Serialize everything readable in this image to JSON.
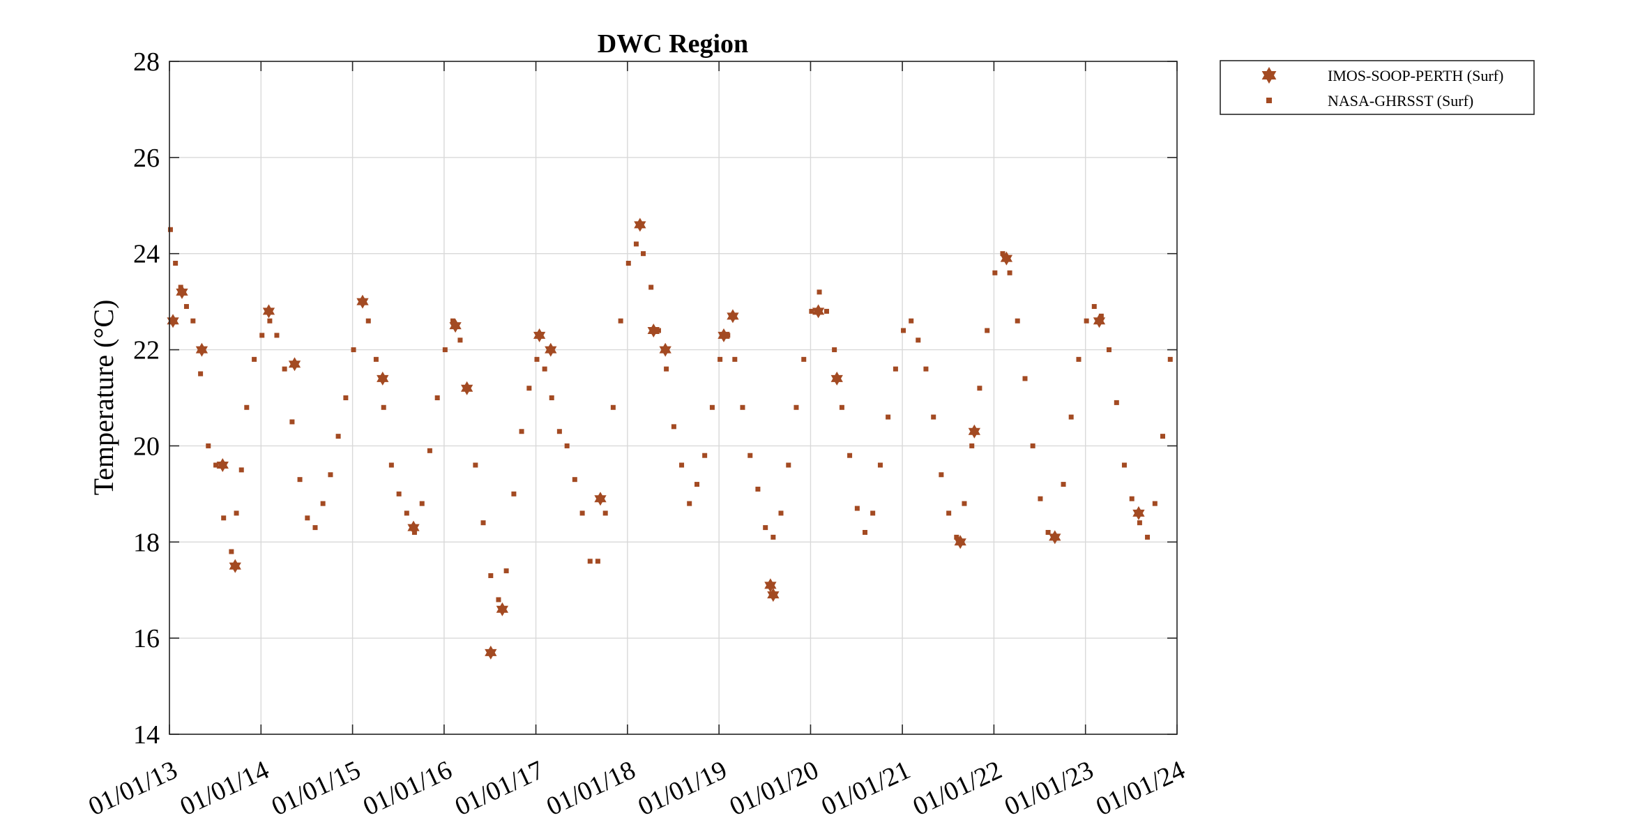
{
  "chart_data": {
    "type": "scatter",
    "title": "DWC Region",
    "xlabel": "",
    "ylabel": "Temperature (°C)",
    "x_type": "date",
    "xlim": [
      "2013-01-01",
      "2024-01-01"
    ],
    "ylim": [
      14,
      28
    ],
    "x_ticks": [
      "2013-01-01",
      "2014-01-01",
      "2015-01-01",
      "2016-01-01",
      "2017-01-01",
      "2018-01-01",
      "2019-01-01",
      "2020-01-01",
      "2021-01-01",
      "2022-01-01",
      "2023-01-01",
      "2024-01-01"
    ],
    "x_tick_labels": [
      "01/01/13",
      "01/01/14",
      "01/01/15",
      "01/01/16",
      "01/01/17",
      "01/01/18",
      "01/01/19",
      "01/01/20",
      "01/01/21",
      "01/01/22",
      "01/01/23",
      "01/01/24"
    ],
    "y_ticks": [
      14,
      16,
      18,
      20,
      22,
      24,
      26,
      28
    ],
    "y_tick_labels": [
      "14",
      "16",
      "18",
      "20",
      "22",
      "24",
      "26",
      "28"
    ],
    "grid": true,
    "legend_position": "outside-top-right",
    "color": "#a34a22",
    "series": [
      {
        "name": "IMOS-SOOP-PERTH (Surf)",
        "marker": "hexagram",
        "x": [
          "2013-01-15",
          "2013-02-20",
          "2013-05-10",
          "2013-08-01",
          "2013-09-20",
          "2014-02-01",
          "2014-05-15",
          "2015-02-10",
          "2015-05-01",
          "2015-09-01",
          "2016-02-15",
          "2016-04-01",
          "2016-07-05",
          "2016-08-20",
          "2017-01-15",
          "2017-03-01",
          "2017-09-15",
          "2018-02-20",
          "2018-04-15",
          "2018-06-01",
          "2019-01-20",
          "2019-02-25",
          "2019-07-25",
          "2019-08-05",
          "2020-02-01",
          "2020-04-15",
          "2021-08-20",
          "2021-10-15",
          "2022-02-20",
          "2022-09-01",
          "2023-02-25",
          "2023-08-01"
        ],
        "y": [
          22.6,
          23.2,
          22.0,
          19.6,
          17.5,
          22.8,
          21.7,
          23.0,
          21.4,
          18.3,
          22.5,
          21.2,
          15.7,
          16.6,
          22.3,
          22.0,
          18.9,
          24.6,
          22.4,
          22.0,
          22.3,
          22.7,
          17.1,
          16.9,
          22.8,
          21.4,
          18.0,
          20.3,
          23.9,
          18.1,
          22.6,
          18.6
        ]
      },
      {
        "name": "NASA-GHRSST (Surf)",
        "marker": "square",
        "x": [
          "2013-01-05",
          "2013-01-25",
          "2013-02-15",
          "2013-03-10",
          "2013-04-05",
          "2013-05-05",
          "2013-06-05",
          "2013-07-05",
          "2013-08-05",
          "2013-09-05",
          "2013-09-25",
          "2013-10-15",
          "2013-11-05",
          "2013-12-05",
          "2014-01-05",
          "2014-02-05",
          "2014-03-05",
          "2014-04-05",
          "2014-05-05",
          "2014-06-05",
          "2014-07-05",
          "2014-08-05",
          "2014-09-05",
          "2014-10-05",
          "2014-11-05",
          "2014-12-05",
          "2015-01-05",
          "2015-02-05",
          "2015-03-05",
          "2015-04-05",
          "2015-05-05",
          "2015-06-05",
          "2015-07-05",
          "2015-08-05",
          "2015-09-05",
          "2015-10-05",
          "2015-11-05",
          "2015-12-05",
          "2016-01-05",
          "2016-02-05",
          "2016-03-05",
          "2016-04-05",
          "2016-05-05",
          "2016-06-05",
          "2016-07-05",
          "2016-08-05",
          "2016-09-05",
          "2016-10-05",
          "2016-11-05",
          "2016-12-05",
          "2017-01-05",
          "2017-02-05",
          "2017-03-05",
          "2017-04-05",
          "2017-05-05",
          "2017-06-05",
          "2017-07-05",
          "2017-08-05",
          "2017-09-05",
          "2017-10-05",
          "2017-11-05",
          "2017-12-05",
          "2018-01-05",
          "2018-02-05",
          "2018-03-05",
          "2018-04-05",
          "2018-05-05",
          "2018-06-05",
          "2018-07-05",
          "2018-08-05",
          "2018-09-05",
          "2018-10-05",
          "2018-11-05",
          "2018-12-05",
          "2019-01-05",
          "2019-02-05",
          "2019-03-05",
          "2019-04-05",
          "2019-05-05",
          "2019-06-05",
          "2019-07-05",
          "2019-08-05",
          "2019-09-05",
          "2019-10-05",
          "2019-11-05",
          "2019-12-05",
          "2020-01-05",
          "2020-02-05",
          "2020-03-05",
          "2020-04-05",
          "2020-05-05",
          "2020-06-05",
          "2020-07-05",
          "2020-08-05",
          "2020-09-05",
          "2020-10-05",
          "2020-11-05",
          "2020-12-05",
          "2021-01-05",
          "2021-02-05",
          "2021-03-05",
          "2021-04-05",
          "2021-05-05",
          "2021-06-05",
          "2021-07-05",
          "2021-08-05",
          "2021-09-05",
          "2021-10-05",
          "2021-11-05",
          "2021-12-05",
          "2022-01-05",
          "2022-02-05",
          "2022-03-05",
          "2022-04-05",
          "2022-05-05",
          "2022-06-05",
          "2022-07-05",
          "2022-08-05",
          "2022-09-05",
          "2022-10-05",
          "2022-11-05",
          "2022-12-05",
          "2023-01-05",
          "2023-02-05",
          "2023-03-05",
          "2023-04-05",
          "2023-05-05",
          "2023-06-05",
          "2023-07-05",
          "2023-08-05",
          "2023-09-05",
          "2023-10-05",
          "2023-11-05",
          "2023-12-05"
        ],
        "y": [
          24.5,
          23.8,
          23.3,
          22.9,
          22.6,
          21.5,
          20.0,
          19.6,
          18.5,
          17.8,
          18.6,
          19.5,
          20.8,
          21.8,
          22.3,
          22.6,
          22.3,
          21.6,
          20.5,
          19.3,
          18.5,
          18.3,
          18.8,
          19.4,
          20.2,
          21.0,
          22.0,
          23.0,
          22.6,
          21.8,
          20.8,
          19.6,
          19.0,
          18.6,
          18.2,
          18.8,
          19.9,
          21.0,
          22.0,
          22.6,
          22.2,
          21.2,
          19.6,
          18.4,
          17.3,
          16.8,
          17.4,
          19.0,
          20.3,
          21.2,
          21.8,
          21.6,
          21.0,
          20.3,
          20.0,
          19.3,
          18.6,
          17.6,
          17.6,
          18.6,
          20.8,
          22.6,
          23.8,
          24.2,
          24.0,
          23.3,
          22.4,
          21.6,
          20.4,
          19.6,
          18.8,
          19.2,
          19.8,
          20.8,
          21.8,
          22.3,
          21.8,
          20.8,
          19.8,
          19.1,
          18.3,
          18.1,
          18.6,
          19.6,
          20.8,
          21.8,
          22.8,
          23.2,
          22.8,
          22.0,
          20.8,
          19.8,
          18.7,
          18.2,
          18.6,
          19.6,
          20.6,
          21.6,
          22.4,
          22.6,
          22.2,
          21.6,
          20.6,
          19.4,
          18.6,
          18.1,
          18.8,
          20.0,
          21.2,
          22.4,
          23.6,
          24.0,
          23.6,
          22.6,
          21.4,
          20.0,
          18.9,
          18.2,
          18.1,
          19.2,
          20.6,
          21.8,
          22.6,
          22.9,
          22.7,
          22.0,
          20.9,
          19.6,
          18.9,
          18.4,
          18.1,
          18.8,
          20.2,
          21.8
        ]
      }
    ]
  }
}
